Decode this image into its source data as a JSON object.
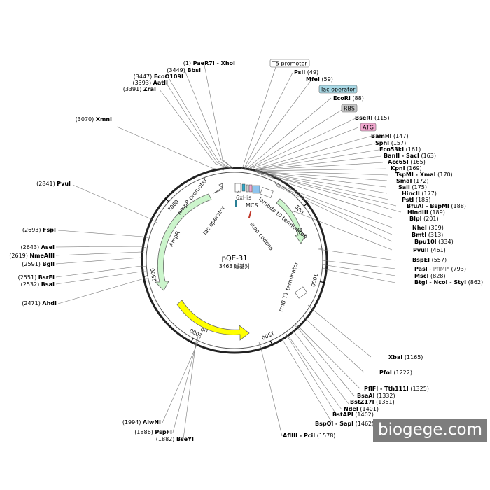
{
  "plasmid": {
    "name": "pQE-31",
    "size_label": "3463 碱基对",
    "length": 3463
  },
  "ticks": [
    {
      "pos": 500,
      "label": "500"
    },
    {
      "pos": 1000,
      "label": "1000"
    },
    {
      "pos": 1500,
      "label": "1500"
    },
    {
      "pos": 2000,
      "label": "2000"
    },
    {
      "pos": 2500,
      "label": "2500"
    },
    {
      "pos": 3000,
      "label": "3000"
    }
  ],
  "sites_right": [
    {
      "name": "PsiI",
      "pos": "(49)"
    },
    {
      "name": "MfeI",
      "pos": "(59)"
    },
    {
      "name": "EcoRI",
      "pos": "(88)"
    },
    {
      "name": "BseRI",
      "pos": "(115)"
    },
    {
      "name": "BamHI",
      "pos": "(147)"
    },
    {
      "name": "SphI",
      "pos": "(157)"
    },
    {
      "name": "Eco53kI",
      "pos": "(161)"
    },
    {
      "name": "BanII - SacI",
      "pos": "(163)"
    },
    {
      "name": "Acc65I",
      "pos": "(165)"
    },
    {
      "name": "KpnI",
      "pos": "(169)"
    },
    {
      "name": "TspMI - XmaI",
      "pos": "(170)"
    },
    {
      "name": "SmaI",
      "pos": "(172)"
    },
    {
      "name": "SalI",
      "pos": "(175)"
    },
    {
      "name": "HincII",
      "pos": "(177)"
    },
    {
      "name": "PstI",
      "pos": "(185)"
    },
    {
      "name": "BfuAI - BspMI",
      "pos": "(188)"
    },
    {
      "name": "HindIII",
      "pos": "(189)"
    },
    {
      "name": "BlpI",
      "pos": "(201)"
    },
    {
      "name": "NheI",
      "pos": "(309)"
    },
    {
      "name": "BmtI",
      "pos": "(313)"
    },
    {
      "name": "Bpu10I",
      "pos": "(334)"
    },
    {
      "name": "PvuII",
      "pos": "(461)"
    },
    {
      "name": "BspEI",
      "pos": "(557)"
    },
    {
      "name": "PasI",
      "alt": " - PflMI*",
      "pos": "(793)"
    },
    {
      "name": "MscI",
      "pos": "(828)"
    },
    {
      "name": "BtgI - NcoI - StyI",
      "pos": "(862)"
    },
    {
      "name": "XbaI",
      "pos": "(1165)"
    },
    {
      "name": "PfoI",
      "pos": "(1222)"
    },
    {
      "name": "PflFI - Tth111I",
      "pos": "(1325)"
    },
    {
      "name": "BsaAI",
      "pos": "(1332)"
    },
    {
      "name": "BstZ17I",
      "pos": "(1351)"
    },
    {
      "name": "NdeI",
      "pos": "(1401)"
    },
    {
      "name": "BstAPI",
      "pos": "(1402)"
    },
    {
      "name": "BspQI - SapI",
      "pos": "(1462)"
    },
    {
      "name": "AflIII - PciI",
      "pos": "(1578)"
    }
  ],
  "sites_left": [
    {
      "name": "PaeR7I - XhoI",
      "pos": "(1)"
    },
    {
      "name": "BbsI",
      "pos": "(3449)"
    },
    {
      "name": "EcoO109I",
      "pos": "(3447)"
    },
    {
      "name": "AatII",
      "pos": "(3393)"
    },
    {
      "name": "ZraI",
      "pos": "(3391)"
    },
    {
      "name": "XmnI",
      "pos": "(3070)"
    },
    {
      "name": "PvuI",
      "pos": "(2841)"
    },
    {
      "name": "FspI",
      "pos": "(2693)"
    },
    {
      "name": "AseI",
      "pos": "(2643)"
    },
    {
      "name": "NmeAIII",
      "pos": "(2619)"
    },
    {
      "name": "BglI",
      "pos": "(2591)"
    },
    {
      "name": "BsrFI",
      "pos": "(2551)"
    },
    {
      "name": "BsaI",
      "pos": "(2532)"
    },
    {
      "name": "AhdI",
      "pos": "(2471)"
    },
    {
      "name": "AlwNI",
      "pos": "(1994)"
    },
    {
      "name": "PspFI",
      "pos": "(1886)"
    },
    {
      "name": "BseYI",
      "pos": "(1882)"
    }
  ],
  "tags": [
    {
      "label": "T5 promoter",
      "color": "#ffffff"
    },
    {
      "label": "lac operator",
      "color": "#a9d9e6"
    },
    {
      "label": "RBS",
      "color": "#c8c8c8"
    },
    {
      "label": "ATG",
      "color": "#f2a8d0"
    }
  ],
  "features": {
    "ampr_promoter": "AmpR promoter",
    "ampr": "AmpR",
    "ori": "ori",
    "lac_operator": "lac operator",
    "sixhis": "6xHis",
    "mcs": "MCS",
    "lambda_t0": "lambda t0 terminator",
    "cmr": "CmR",
    "stop_codons": "stop codons",
    "rrnb_t1": "rrnB T1 terminator",
    "t5": "T5"
  },
  "colors": {
    "ampr": "#ccf5cc",
    "ori": "#ffff00",
    "cmr": "#ccf5cc",
    "ring": "#222222",
    "sixhis": "#2ea8c8",
    "stop": "#c0392b"
  },
  "watermark": "biogege.com"
}
